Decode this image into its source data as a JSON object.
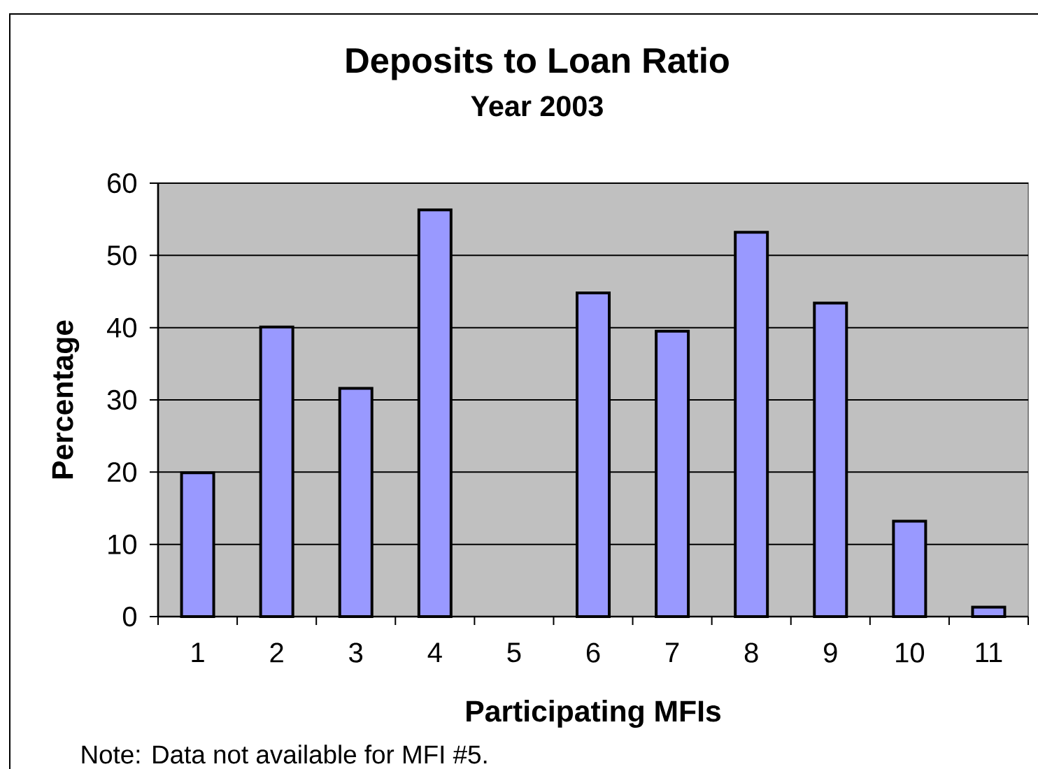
{
  "chart_data": {
    "type": "bar",
    "title": "Deposits to Loan Ratio",
    "subtitle": "Year 2003",
    "xlabel": "Participating MFIs",
    "ylabel": "Percentage",
    "categories": [
      "1",
      "2",
      "3",
      "4",
      "5",
      "6",
      "7",
      "8",
      "9",
      "10",
      "11"
    ],
    "values": [
      19.9,
      40.1,
      31.6,
      56.3,
      null,
      44.8,
      39.5,
      53.2,
      43.4,
      13.2,
      1.3
    ],
    "color": "#9999ff",
    "ylim": [
      0,
      60
    ],
    "yticks": [
      0,
      10,
      20,
      30,
      40,
      50,
      60
    ],
    "grid": "y",
    "annotations": [
      "Note: Data not available for MFI #5."
    ]
  }
}
